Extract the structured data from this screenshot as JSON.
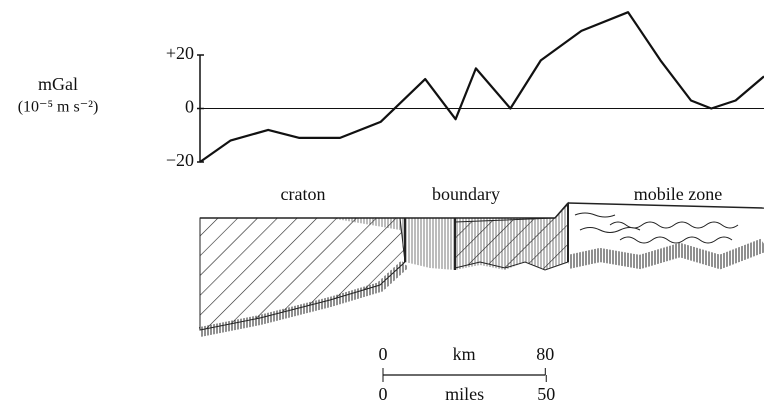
{
  "chart_data": {
    "type": "line",
    "ylabel": [
      "mGal",
      "(10⁻⁵ m s⁻²)"
    ],
    "x": [
      0,
      15,
      33.6,
      49,
      69,
      89,
      111,
      126,
      136,
      153,
      168,
      188,
      211,
      227,
      242,
      252,
      264,
      278
    ],
    "series": [
      {
        "color": "#111111",
        "values": [
          -20,
          -12,
          -8,
          -11,
          -11,
          -5,
          11,
          -4,
          15,
          0,
          18,
          29,
          36,
          18,
          3,
          0,
          3,
          12
        ]
      }
    ],
    "xlim": [
      0,
      278
    ],
    "ylim": [
      -20,
      20
    ],
    "yticks": [
      {
        "value": 20,
        "label": "+20"
      },
      0,
      {
        "value": -20,
        "label": "−20"
      }
    ],
    "annotations": [
      "craton",
      "boundary",
      "mobile zone"
    ],
    "scale_bar": {
      "km_label": "km",
      "km_ticks": [
        0,
        80
      ],
      "miles_label": "miles",
      "miles_ticks": [
        0,
        50
      ]
    }
  }
}
